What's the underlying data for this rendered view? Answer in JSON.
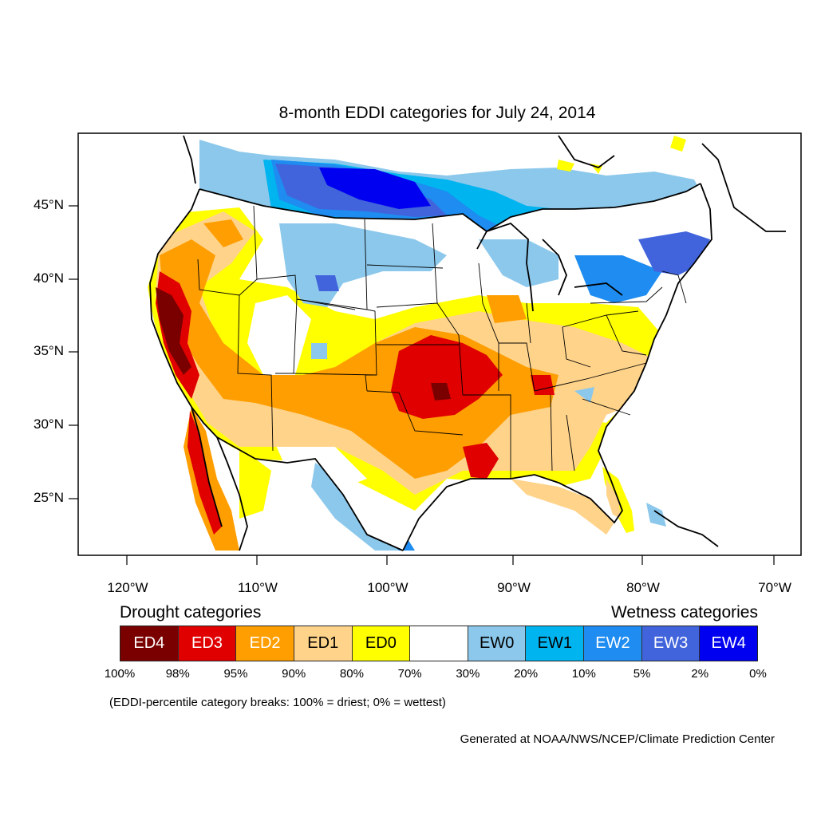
{
  "title": "8-month EDDI categories for July 24, 2014",
  "axes": {
    "lat_labels": [
      "45°N",
      "40°N",
      "35°N",
      "30°N",
      "25°N"
    ],
    "lon_labels": [
      "120°W",
      "110°W",
      "100°W",
      "90°W",
      "80°W",
      "70°W"
    ]
  },
  "legend": {
    "drought_heading": "Drought categories",
    "wetness_heading": "Wetness categories",
    "categories": [
      {
        "label": "ED4",
        "color": "#7a0000",
        "text_color": "#ffffff"
      },
      {
        "label": "ED3",
        "color": "#e00000",
        "text_color": "#ffffff"
      },
      {
        "label": "ED2",
        "color": "#ff9e00",
        "text_color": "#ffffff"
      },
      {
        "label": "ED1",
        "color": "#ffd38a",
        "text_color": "#000000"
      },
      {
        "label": "ED0",
        "color": "#ffff00",
        "text_color": "#000000"
      },
      {
        "label": "",
        "color": "#ffffff",
        "text_color": "#000000"
      },
      {
        "label": "EW0",
        "color": "#8cc8eb",
        "text_color": "#000000"
      },
      {
        "label": "EW1",
        "color": "#00b4f0",
        "text_color": "#000000"
      },
      {
        "label": "EW2",
        "color": "#1e8cf0",
        "text_color": "#ffffff"
      },
      {
        "label": "EW3",
        "color": "#4164dc",
        "text_color": "#ffffff"
      },
      {
        "label": "EW4",
        "color": "#0000f0",
        "text_color": "#ffffff"
      }
    ],
    "breaks": [
      "100%",
      "98%",
      "95%",
      "90%",
      "80%",
      "70%",
      "30%",
      "20%",
      "10%",
      "5%",
      "2%",
      "0%"
    ]
  },
  "note": "(EDDI-percentile category breaks: 100% = driest; 0% = wettest)",
  "credit": "Generated at NOAA/NWS/NCEP/Climate Prediction Center"
}
